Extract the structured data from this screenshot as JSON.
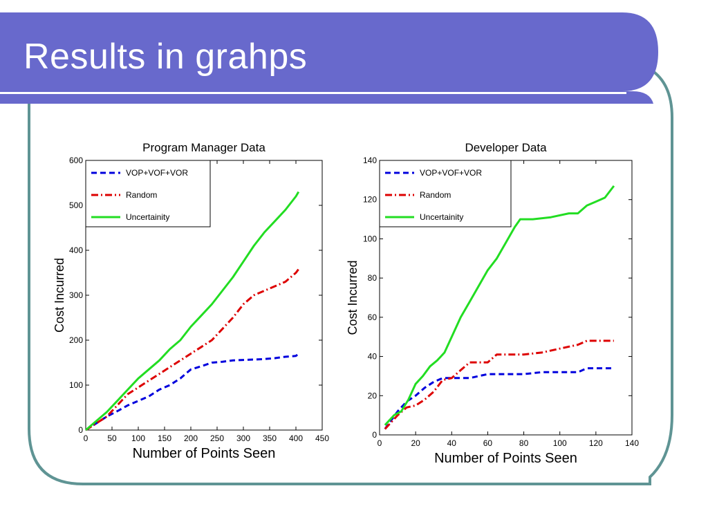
{
  "slide": {
    "title": "Results in grahps",
    "colors": {
      "header": "#6869cc",
      "frame": "#5f9494",
      "rule": "#ffffff"
    }
  },
  "chart_data": [
    {
      "type": "line",
      "title": "Program Manager Data",
      "xlabel": "Number of Points Seen",
      "ylabel": "Cost Incurred",
      "xlim": [
        0,
        450
      ],
      "ylim": [
        0,
        600
      ],
      "xticks": [
        0,
        50,
        100,
        150,
        200,
        250,
        300,
        350,
        400,
        450
      ],
      "yticks": [
        0,
        100,
        200,
        300,
        400,
        500,
        600
      ],
      "grid": false,
      "legend": "top-left",
      "series": [
        {
          "name": "VOP+VOF+VOR",
          "color": "#0000dd",
          "dash": "dashed",
          "x": [
            0,
            20,
            40,
            60,
            80,
            100,
            120,
            140,
            160,
            180,
            200,
            220,
            240,
            260,
            280,
            300,
            320,
            340,
            360,
            380,
            400,
            405
          ],
          "y": [
            0,
            15,
            30,
            42,
            55,
            65,
            75,
            90,
            100,
            115,
            135,
            142,
            150,
            152,
            155,
            156,
            157,
            158,
            160,
            163,
            165,
            170
          ]
        },
        {
          "name": "Random",
          "color": "#dd0000",
          "dash": "dashdot",
          "x": [
            0,
            20,
            40,
            60,
            80,
            100,
            120,
            140,
            160,
            180,
            200,
            220,
            240,
            260,
            280,
            300,
            320,
            340,
            360,
            380,
            400,
            405
          ],
          "y": [
            0,
            15,
            30,
            55,
            80,
            95,
            110,
            125,
            140,
            155,
            170,
            185,
            200,
            225,
            250,
            280,
            300,
            310,
            320,
            330,
            350,
            358
          ]
        },
        {
          "name": "Uncertainity",
          "color": "#22dd22",
          "dash": "solid",
          "x": [
            0,
            20,
            40,
            60,
            80,
            100,
            120,
            140,
            160,
            180,
            200,
            220,
            240,
            260,
            280,
            300,
            320,
            340,
            360,
            380,
            400,
            405
          ],
          "y": [
            0,
            20,
            40,
            65,
            90,
            115,
            135,
            155,
            180,
            200,
            230,
            255,
            280,
            310,
            340,
            375,
            410,
            440,
            465,
            490,
            520,
            530
          ]
        }
      ]
    },
    {
      "type": "line",
      "title": "Developer Data",
      "xlabel": "Number of Points Seen",
      "ylabel": "Cost Incurred",
      "xlim": [
        0,
        140
      ],
      "ylim": [
        0,
        140
      ],
      "xticks": [
        0,
        20,
        40,
        60,
        80,
        100,
        120,
        140
      ],
      "yticks": [
        0,
        20,
        40,
        60,
        80,
        100,
        120,
        140
      ],
      "grid": false,
      "legend": "top-left",
      "series": [
        {
          "name": "VOP+VOF+VOR",
          "color": "#0000dd",
          "dash": "dashed",
          "x": [
            3,
            10,
            15,
            20,
            25,
            30,
            35,
            40,
            50,
            60,
            70,
            80,
            90,
            100,
            110,
            115,
            120,
            130
          ],
          "y": [
            3,
            12,
            17,
            20,
            24,
            27,
            29,
            29,
            29,
            31,
            31,
            31,
            32,
            32,
            32,
            34,
            34,
            34
          ]
        },
        {
          "name": "Random",
          "color": "#dd0000",
          "dash": "dashdot",
          "x": [
            3,
            10,
            15,
            20,
            25,
            30,
            35,
            40,
            45,
            50,
            60,
            65,
            70,
            80,
            90,
            100,
            110,
            115,
            120,
            130
          ],
          "y": [
            3,
            10,
            14,
            15,
            18,
            22,
            28,
            29,
            33,
            37,
            37,
            41,
            41,
            41,
            42,
            44,
            46,
            48,
            48,
            48
          ]
        },
        {
          "name": "Uncertainity",
          "color": "#22dd22",
          "dash": "solid",
          "x": [
            3,
            8,
            12,
            16,
            20,
            24,
            28,
            32,
            36,
            40,
            45,
            50,
            55,
            60,
            65,
            70,
            75,
            78,
            85,
            95,
            105,
            110,
            115,
            120,
            125,
            130
          ],
          "y": [
            5,
            10,
            12,
            18,
            26,
            30,
            35,
            38,
            42,
            50,
            60,
            68,
            76,
            84,
            90,
            98,
            106,
            110,
            110,
            111,
            113,
            113,
            117,
            119,
            121,
            127
          ]
        }
      ]
    }
  ]
}
